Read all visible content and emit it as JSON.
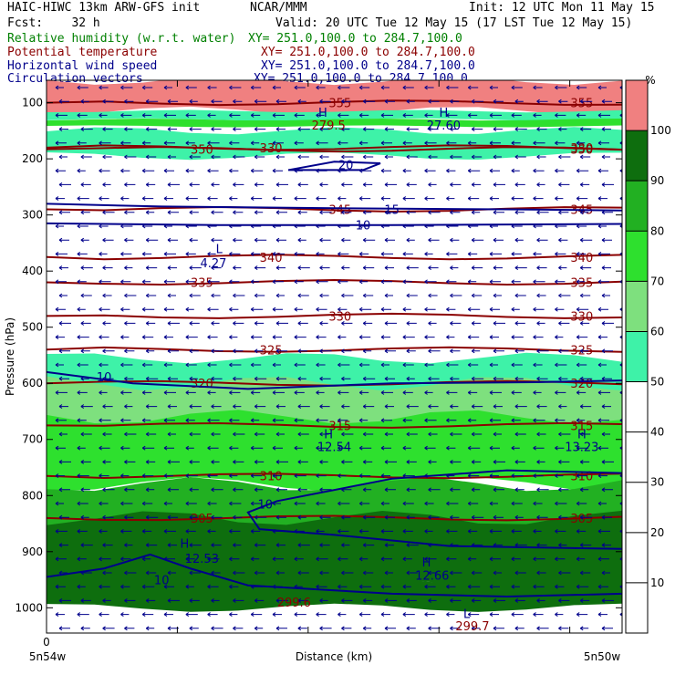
{
  "header": {
    "title": "HAIC-HIWC 13km ARW-GFS init",
    "org": "NCAR/MMM",
    "init": "Init: 12 UTC Mon 11 May 15",
    "fcst": "Fcst:    32 h",
    "valid": "Valid: 20 UTC Tue 12 May 15 (17 LST Tue 12 May 15)"
  },
  "fields": [
    {
      "name": "Relative humidity (w.r.t. water)",
      "xy": "XY= 251.0,100.0 to 284.7,100.0",
      "color": "#008000"
    },
    {
      "name": "Potential temperature",
      "xy": "XY= 251.0,100.0 to 284.7,100.0",
      "color": "#8b0000"
    },
    {
      "name": "Horizontal wind speed",
      "xy": "XY= 251.0,100.0 to 284.7,100.0",
      "color": "#00008b"
    },
    {
      "name": "Circulation vectors",
      "xy": "XY= 251.0,100.0 to 284.7,100.0",
      "color": "#00008b"
    }
  ],
  "chart_data": {
    "type": "heatmap",
    "xlabel": "Distance (km)",
    "ylabel": "Pressure (hPa)",
    "x_ticks": [
      {
        "value": 0,
        "label": "0"
      }
    ],
    "x_endpoints": {
      "left": "5n54w",
      "right": "5n50w"
    },
    "ylim": [
      60,
      1045
    ],
    "y_ticks": [
      100,
      200,
      300,
      400,
      500,
      600,
      700,
      800,
      900,
      1000
    ],
    "colorbar": {
      "unit": "%",
      "ticks": [
        10,
        20,
        30,
        40,
        50,
        60,
        70,
        80,
        90,
        100
      ],
      "classes": [
        {
          "min": 50,
          "max": 60,
          "color": "#3ef2a8"
        },
        {
          "min": 60,
          "max": 70,
          "color": "#7ee07e"
        },
        {
          "min": 70,
          "max": 80,
          "color": "#2ee02e"
        },
        {
          "min": 80,
          "max": 90,
          "color": "#22b022"
        },
        {
          "min": 90,
          "max": 100,
          "color": "#0e6e0e"
        },
        {
          "min": 100,
          "max": 110,
          "color": "#f08080"
        }
      ]
    },
    "rh_regions": [
      {
        "class": 100,
        "top": 60,
        "bottom": 115
      },
      {
        "class": 50,
        "top": 115,
        "bottom": 130
      },
      {
        "class": 70,
        "top": 130,
        "bottom": 142
      },
      {
        "class": 50,
        "top": 150,
        "bottom": 195
      },
      {
        "class": 50,
        "top": 555,
        "bottom": 620
      },
      {
        "class": 60,
        "top": 600,
        "bottom": 690
      },
      {
        "class": 70,
        "top": 660,
        "bottom": 780
      },
      {
        "class": 80,
        "top": 780,
        "bottom": 920
      },
      {
        "class": 90,
        "top": 840,
        "bottom": 960
      },
      {
        "class": 90,
        "top": 950,
        "bottom": 1000
      }
    ],
    "theta_levels": [
      {
        "value": 305,
        "pressure": 840,
        "label": "305"
      },
      {
        "value": 310,
        "pressure": 765,
        "label": "310"
      },
      {
        "value": 315,
        "pressure": 675,
        "label": "315"
      },
      {
        "value": 320,
        "pressure": 600,
        "label": "320"
      },
      {
        "value": 325,
        "pressure": 540,
        "label": "325"
      },
      {
        "value": 330,
        "pressure": 480,
        "label": "330"
      },
      {
        "value": 335,
        "pressure": 420,
        "label": "335"
      },
      {
        "value": 340,
        "pressure": 375,
        "label": "340"
      },
      {
        "value": 345,
        "pressure": 290,
        "label": "345"
      },
      {
        "value": 350,
        "pressure": 183,
        "label": "350"
      },
      {
        "value": 330,
        "pressure": 180,
        "label": "330"
      },
      {
        "value": 355,
        "pressure": 100,
        "label": "355"
      }
    ],
    "wind_contours": [
      {
        "value": 10,
        "label": "10"
      },
      {
        "value": 15,
        "label": "15"
      },
      {
        "value": 20,
        "label": "20"
      }
    ],
    "annotations": [
      {
        "text": "H",
        "x": 0.49,
        "pressure": 690
      },
      {
        "text": "12.54",
        "x": 0.5,
        "pressure": 713
      },
      {
        "text": "H",
        "x": 0.93,
        "pressure": 690
      },
      {
        "text": "13.23",
        "x": 0.93,
        "pressure": 713
      },
      {
        "text": "H",
        "x": 0.24,
        "pressure": 885
      },
      {
        "text": "12.53",
        "x": 0.27,
        "pressure": 912
      },
      {
        "text": "H",
        "x": 0.66,
        "pressure": 918
      },
      {
        "text": "12.66",
        "x": 0.67,
        "pressure": 942
      },
      {
        "text": "L",
        "x": 0.3,
        "pressure": 360
      },
      {
        "text": "4.27",
        "x": 0.29,
        "pressure": 385
      },
      {
        "text": "L",
        "x": 0.73,
        "pressure": 1010
      },
      {
        "text": "299.7",
        "x": 0.74,
        "pressure": 1032
      },
      {
        "text": "299.6",
        "x": 0.43,
        "pressure": 990
      },
      {
        "text": "H",
        "x": 0.48,
        "pressure": 117
      },
      {
        "text": "279.5",
        "x": 0.49,
        "pressure": 140
      },
      {
        "text": "H",
        "x": 0.69,
        "pressure": 117
      },
      {
        "text": "27.60",
        "x": 0.69,
        "pressure": 140
      }
    ]
  }
}
